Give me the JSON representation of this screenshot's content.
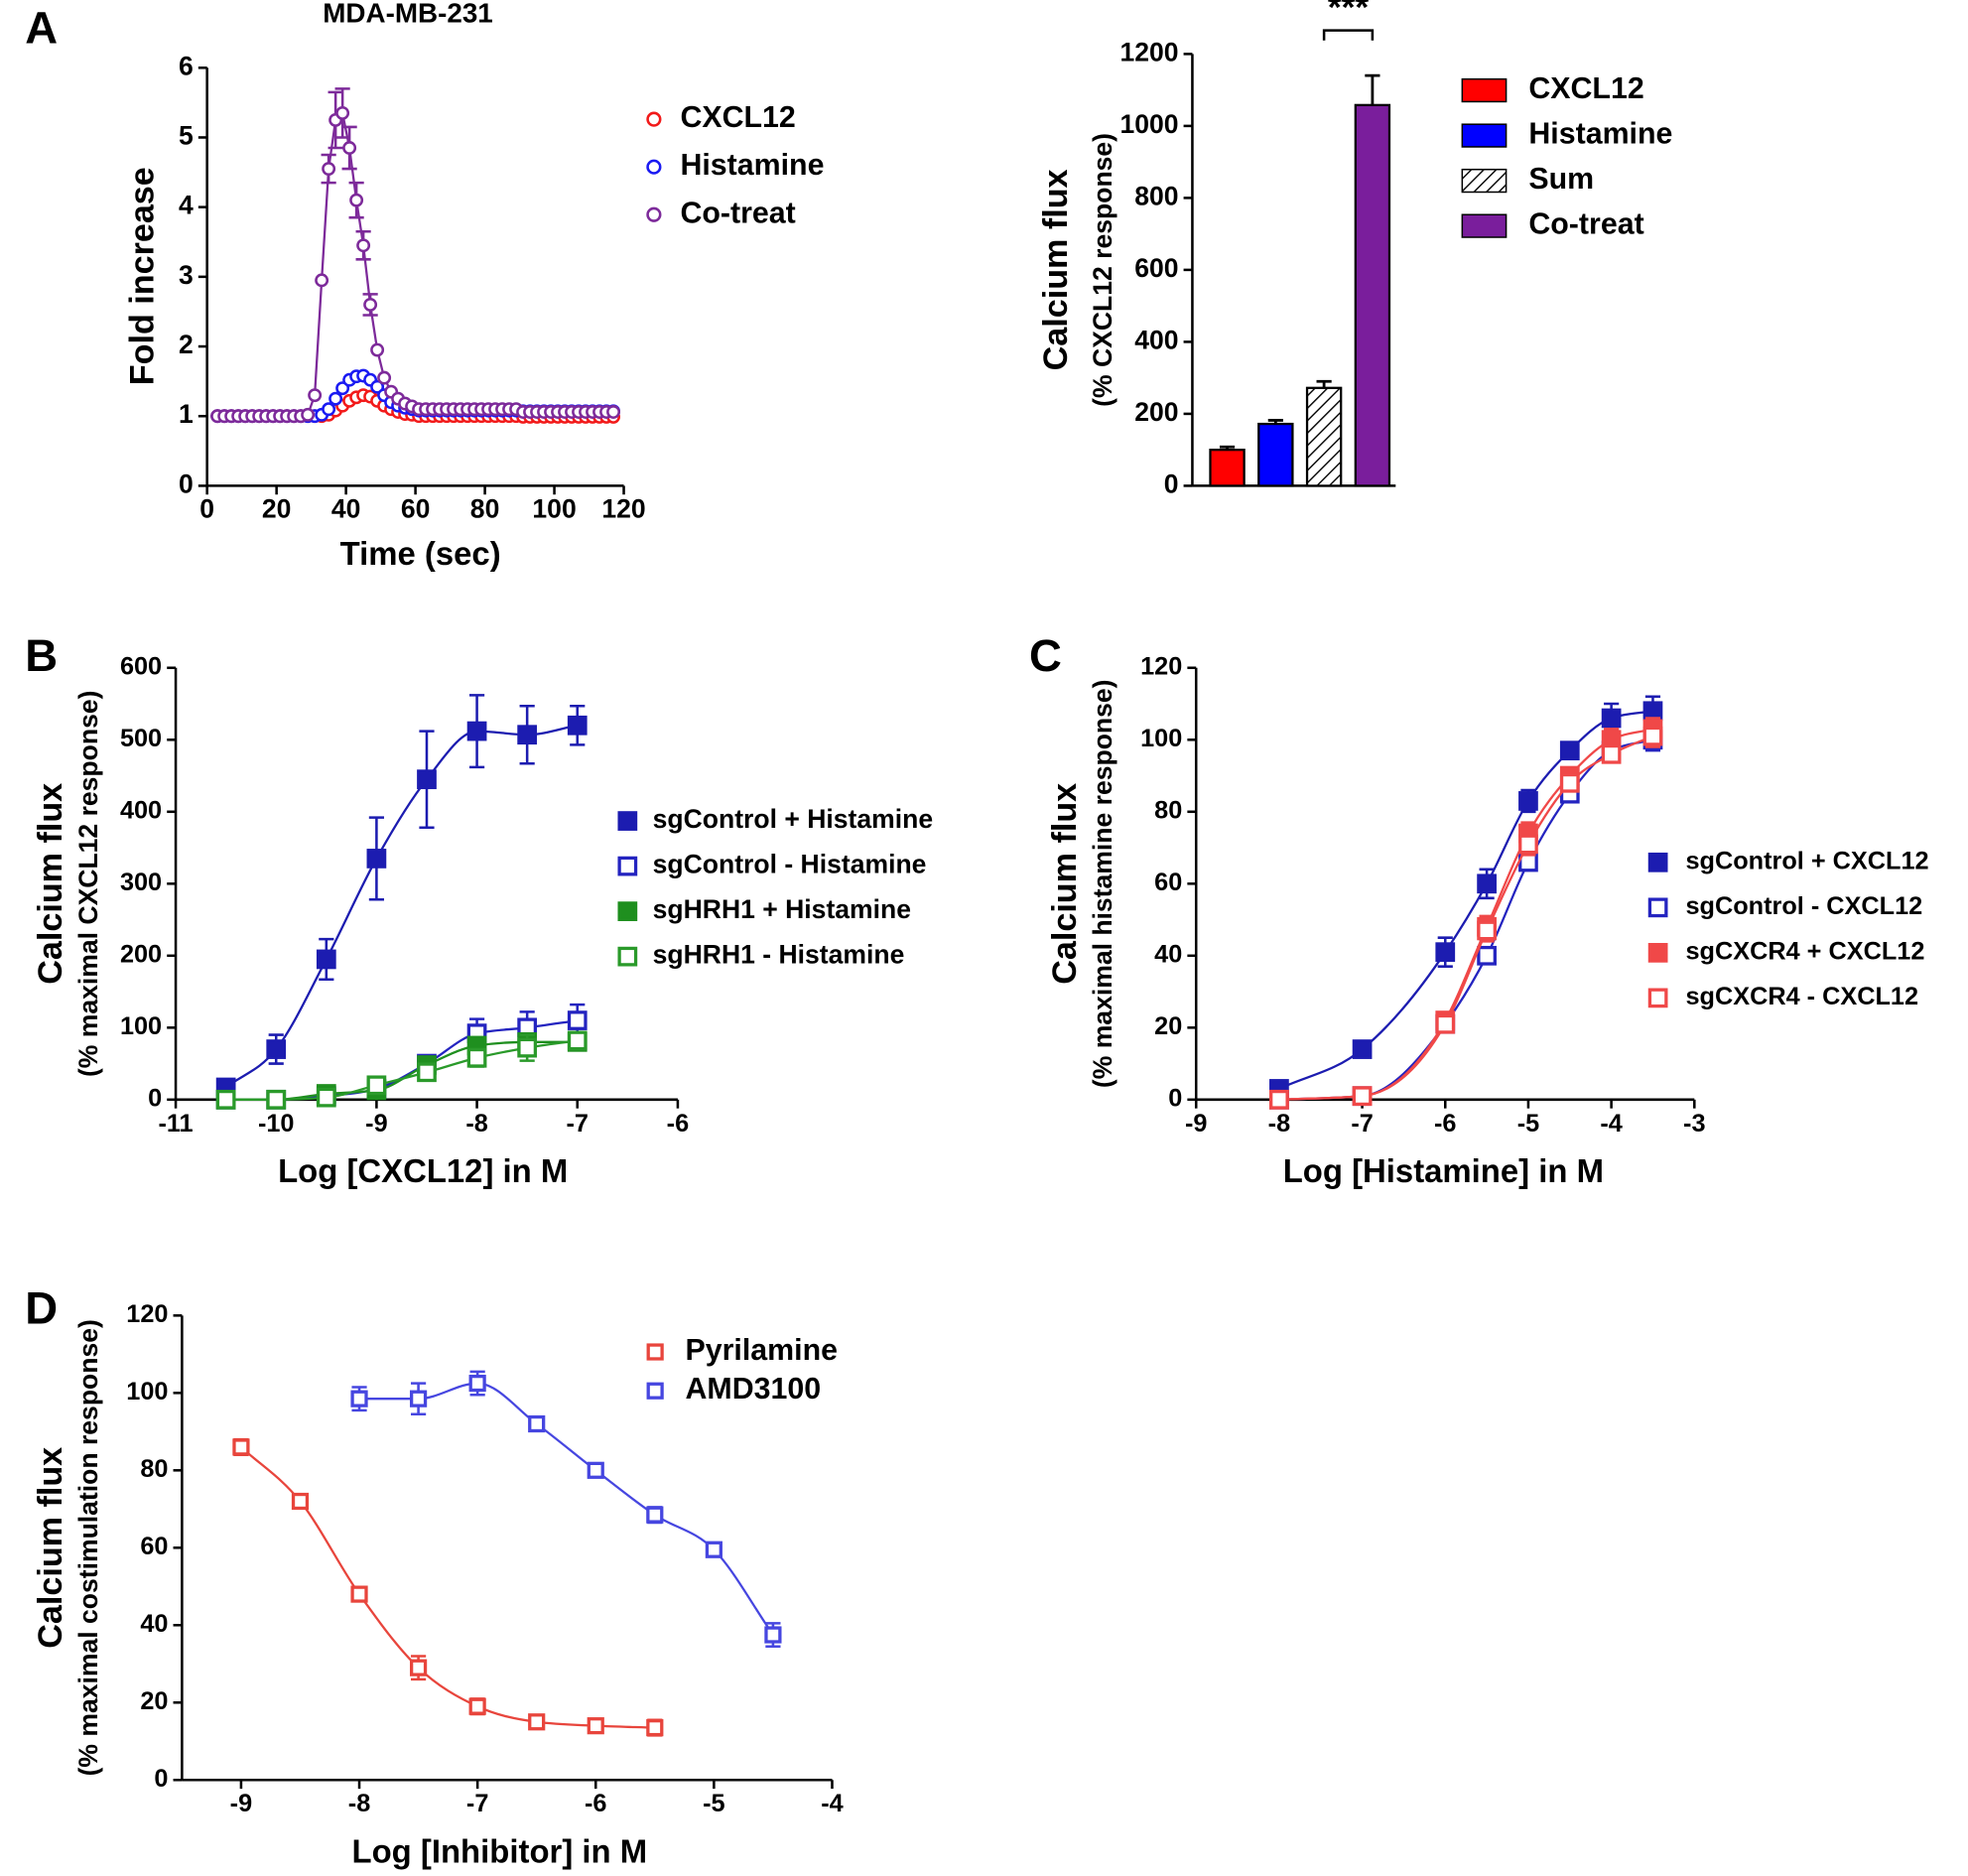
{
  "chart_data": [
    {
      "panel": "A",
      "type": "line",
      "title": "MDA-MB-231",
      "x_label": "Time (sec)",
      "y_label": [
        "Fold increase"
      ],
      "x": [
        3,
        5,
        7,
        9,
        11,
        13,
        15,
        17,
        19,
        21,
        23,
        25,
        27,
        29,
        31,
        33,
        35,
        37,
        39,
        41,
        43,
        45,
        47,
        49,
        51,
        53,
        55,
        57,
        59,
        61,
        63,
        65,
        67,
        69,
        71,
        73,
        75,
        77,
        79,
        81,
        83,
        85,
        87,
        89,
        91,
        93,
        95,
        97,
        99,
        101,
        103,
        105,
        107,
        109,
        111,
        113,
        115,
        117
      ],
      "series": [
        {
          "name": "CXCL12",
          "color": "#f21a1a",
          "marker": "circle",
          "filled": false,
          "values": [
            1.0,
            1.0,
            1.0,
            1.0,
            1.0,
            1.0,
            1.0,
            1.0,
            1.0,
            1.0,
            1.0,
            1.0,
            1.0,
            1.0,
            1.0,
            1.0,
            1.02,
            1.08,
            1.15,
            1.22,
            1.27,
            1.3,
            1.28,
            1.22,
            1.15,
            1.1,
            1.06,
            1.03,
            1.02,
            1.0,
            1.0,
            1.0,
            1.0,
            1.0,
            1.0,
            1.0,
            1.0,
            1.0,
            1.0,
            1.0,
            1.0,
            1.0,
            1.0,
            1.0,
            0.99,
            0.99,
            0.99,
            0.99,
            0.99,
            0.99,
            0.99,
            0.99,
            0.99,
            0.99,
            0.99,
            0.99,
            0.99,
            0.99
          ]
        },
        {
          "name": "Histamine",
          "color": "#1a1af2",
          "marker": "circle",
          "filled": false,
          "values": [
            1.0,
            1.0,
            1.0,
            1.0,
            1.0,
            1.0,
            1.0,
            1.0,
            1.0,
            1.0,
            1.0,
            1.0,
            1.0,
            1.0,
            1.0,
            1.02,
            1.1,
            1.25,
            1.4,
            1.52,
            1.57,
            1.58,
            1.52,
            1.42,
            1.3,
            1.2,
            1.15,
            1.12,
            1.1,
            1.08,
            1.08,
            1.08,
            1.08,
            1.08,
            1.08,
            1.08,
            1.08,
            1.08,
            1.08,
            1.08,
            1.08,
            1.08,
            1.08,
            1.08,
            1.07,
            1.07,
            1.07,
            1.07,
            1.07,
            1.07,
            1.07,
            1.07,
            1.07,
            1.07,
            1.07,
            1.07,
            1.07,
            1.07
          ]
        },
        {
          "name": "Co-treat",
          "color": "#7d2a9a",
          "marker": "circle",
          "filled": false,
          "values": [
            1.0,
            1.0,
            1.0,
            1.0,
            1.0,
            1.0,
            1.0,
            1.0,
            1.0,
            1.0,
            1.0,
            1.0,
            1.0,
            1.02,
            1.3,
            2.95,
            4.55,
            5.25,
            5.35,
            4.85,
            4.1,
            3.45,
            2.6,
            1.95,
            1.55,
            1.35,
            1.25,
            1.18,
            1.14,
            1.1,
            1.1,
            1.1,
            1.1,
            1.1,
            1.1,
            1.1,
            1.1,
            1.1,
            1.1,
            1.1,
            1.1,
            1.1,
            1.1,
            1.1,
            1.06,
            1.06,
            1.06,
            1.06,
            1.06,
            1.06,
            1.06,
            1.06,
            1.06,
            1.06,
            1.06,
            1.06,
            1.06,
            1.06
          ],
          "errors": [
            null,
            null,
            null,
            null,
            null,
            null,
            null,
            null,
            null,
            null,
            null,
            null,
            null,
            null,
            null,
            null,
            0.2,
            0.4,
            0.35,
            0.3,
            0.25,
            0.2,
            0.15,
            null,
            null,
            null,
            null,
            null,
            null,
            null,
            null,
            null,
            null,
            null,
            null,
            null,
            null,
            null,
            null,
            null,
            null,
            null,
            null,
            null,
            null,
            null,
            null,
            null,
            null,
            null,
            null,
            null,
            null,
            null,
            null,
            null,
            null,
            null
          ]
        }
      ],
      "xlim": [
        0,
        120
      ],
      "xticks": [
        0,
        20,
        40,
        60,
        80,
        100,
        120
      ],
      "ylim": [
        0,
        6
      ],
      "yticks": [
        0,
        1,
        2,
        3,
        4,
        5,
        6
      ]
    },
    {
      "type": "bar",
      "y_label": [
        "Calcium flux",
        "(% CXCL12 response)"
      ],
      "categories": [
        "CXCL12",
        "Histamine",
        "Sum",
        "Co-treat"
      ],
      "values": [
        100,
        172,
        272,
        1058
      ],
      "errors": [
        8,
        10,
        18,
        82
      ],
      "colors": [
        "#ff0000",
        "#0000ff",
        "#ffffff",
        "#7a1e9c"
      ],
      "hatched": [
        false,
        false,
        true,
        false
      ],
      "annotation": "***",
      "ylim": [
        0,
        1200
      ],
      "yticks": [
        0,
        200,
        400,
        600,
        800,
        1000,
        1200
      ]
    },
    {
      "panel": "B",
      "type": "scatter",
      "curve": "smooth",
      "x_label": "Log [CXCL12] in M",
      "y_label": [
        "Calcium flux",
        "(% maximal CXCL12 response)"
      ],
      "x": [
        -10.5,
        -10,
        -9.5,
        -9,
        -8.5,
        -8,
        -7.5,
        -7
      ],
      "series": [
        {
          "name": "sgControl + Histamine",
          "color": "#1c1cb0",
          "marker": "square",
          "filled": true,
          "values": [
            17,
            70,
            195,
            335,
            445,
            512,
            507,
            520
          ],
          "errors": [
            5,
            20,
            28,
            57,
            67,
            50,
            40,
            27
          ]
        },
        {
          "name": "sgControl - Histamine",
          "color": "#2424c0",
          "marker": "square",
          "filled": false,
          "values": [
            0,
            0,
            5,
            15,
            50,
            92,
            100,
            110
          ],
          "errors": [
            2,
            2,
            3,
            5,
            5,
            20,
            22,
            22
          ]
        },
        {
          "name": "sgHRH1 + Histamine",
          "color": "#1f8f1f",
          "marker": "square",
          "filled": true,
          "values": [
            0,
            0,
            8,
            13,
            48,
            75,
            80,
            80
          ],
          "errors": [
            2,
            2,
            3,
            4,
            5,
            8,
            10,
            8
          ]
        },
        {
          "name": "sgHRH1 - Histamine",
          "color": "#2a9a2a",
          "marker": "square",
          "filled": false,
          "values": [
            0,
            0,
            3,
            20,
            38,
            58,
            72,
            82
          ],
          "errors": [
            5,
            5,
            5,
            5,
            8,
            12,
            18,
            10
          ]
        }
      ],
      "xlim": [
        -11,
        -6
      ],
      "xticks": [
        -11,
        -10,
        -9,
        -8,
        -7,
        -6
      ],
      "ylim": [
        0,
        600
      ],
      "yticks": [
        0,
        100,
        200,
        300,
        400,
        500,
        600
      ]
    },
    {
      "panel": "C",
      "type": "scatter",
      "curve": "smooth",
      "x_label": "Log [Histamine] in M",
      "y_label": [
        "Calcium flux",
        "(% maximal histamine response)"
      ],
      "x": [
        -8,
        -7,
        -6,
        -5.5,
        -5,
        -4.5,
        -4,
        -3.5
      ],
      "series": [
        {
          "name": "sgControl + CXCL12",
          "color": "#1c1cb0",
          "marker": "square",
          "filled": true,
          "values": [
            3,
            14,
            41,
            60,
            83,
            97,
            106,
            108
          ],
          "errors": [
            1,
            2,
            4,
            4,
            3,
            2,
            4,
            4
          ]
        },
        {
          "name": "sgControl - CXCL12",
          "color": "#2424c0",
          "marker": "square",
          "filled": false,
          "values": [
            0,
            1,
            21,
            40,
            66,
            85,
            97,
            100
          ],
          "errors": [
            1,
            1,
            2,
            2,
            2,
            2,
            3,
            3
          ]
        },
        {
          "name": "sgCXCR4 + CXCL12",
          "color": "#f04848",
          "marker": "square",
          "filled": true,
          "values": [
            0,
            1,
            22,
            48,
            74,
            90,
            100,
            103
          ],
          "errors": [
            1,
            1,
            2,
            3,
            3,
            2,
            3,
            3
          ]
        },
        {
          "name": "sgCXCR4 - CXCL12",
          "color": "#f04848",
          "marker": "square",
          "filled": false,
          "values": [
            0,
            1,
            21,
            47,
            71,
            88,
            96,
            101
          ],
          "errors": [
            1,
            1,
            2,
            3,
            3,
            2,
            2,
            3
          ]
        }
      ],
      "xlim": [
        -9,
        -3
      ],
      "xticks": [
        -9,
        -8,
        -7,
        -6,
        -5,
        -4,
        -3
      ],
      "ylim": [
        0,
        120
      ],
      "yticks": [
        0,
        20,
        40,
        60,
        80,
        100,
        120
      ]
    },
    {
      "panel": "D",
      "type": "scatter",
      "curve": "smooth",
      "x_label": "Log [Inhibitor] in M",
      "y_label": [
        "Calcium flux",
        "(% maximal costimulation response)"
      ],
      "series": [
        {
          "name": "Pyrilamine",
          "color": "#e8453c",
          "marker": "square",
          "filled": false,
          "x": [
            -9,
            -8.5,
            -8,
            -7.5,
            -7,
            -6.5,
            -6,
            -5.5
          ],
          "values": [
            86,
            72,
            48,
            29,
            19,
            15,
            14,
            13.5
          ],
          "errors": [
            2,
            1,
            1,
            3,
            2,
            1,
            1,
            2
          ]
        },
        {
          "name": "AMD3100",
          "color": "#4646e0",
          "marker": "square",
          "filled": false,
          "x": [
            -8,
            -7.5,
            -7,
            -6.5,
            -6,
            -5.5,
            -5,
            -4.5
          ],
          "values": [
            98.5,
            98.5,
            102.5,
            92,
            80,
            68.5,
            59.5,
            37.5
          ],
          "errors": [
            3,
            4,
            3,
            1,
            1,
            2,
            1,
            3
          ]
        }
      ],
      "xlim": [
        -9.5,
        -4
      ],
      "xticks": [
        -9,
        -8,
        -7,
        -6,
        -5,
        -4
      ],
      "ylim": [
        0,
        120
      ],
      "yticks": [
        0,
        20,
        40,
        60,
        80,
        100,
        120
      ]
    }
  ]
}
